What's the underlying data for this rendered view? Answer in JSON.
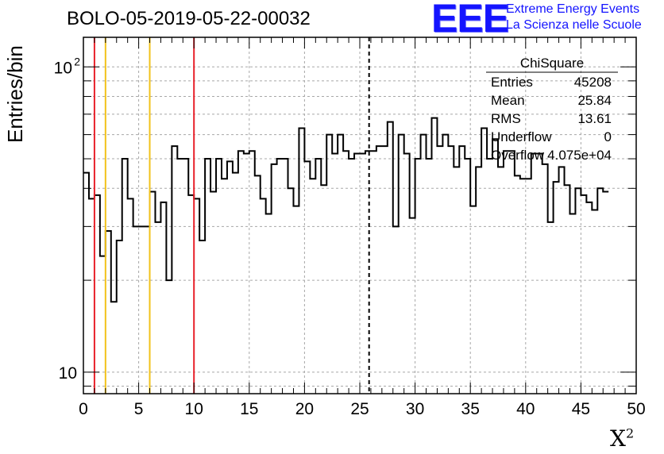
{
  "title": "BOLO-05-2019-05-22-00032",
  "logo": {
    "mark": "EEE",
    "line1": "Extreme Energy Events",
    "line2": "La Scienza nelle Scuole",
    "color": "#1414ff"
  },
  "stats_box": {
    "title": "ChiSquare",
    "rows": [
      {
        "label": "Entries",
        "value": "45208"
      },
      {
        "label": "Mean",
        "value": "25.84"
      },
      {
        "label": "RMS",
        "value": "13.61"
      },
      {
        "label": "Underflow",
        "value": "0"
      },
      {
        "label": "Overflow",
        "value": "4.075e+04"
      }
    ]
  },
  "chart_data": {
    "type": "histogram",
    "xlabel": "X",
    "xlabel_superscript": "2",
    "ylabel": "Entries/bin",
    "xlim": [
      0,
      50
    ],
    "ylim": [
      8.5,
      125
    ],
    "y_log": true,
    "grid": true,
    "x_ticks": [
      "0",
      "5",
      "10",
      "15",
      "20",
      "25",
      "30",
      "35",
      "40",
      "45",
      "50"
    ],
    "y_ticks": [
      {
        "value": 10,
        "label": "10"
      },
      {
        "value": 100,
        "label": "10",
        "exponent": "2"
      }
    ],
    "bin_width": 0.5,
    "values": [
      45,
      37,
      38,
      24,
      29,
      17,
      27,
      50,
      37,
      30,
      30,
      30,
      39,
      31,
      36,
      20,
      55,
      50,
      50,
      38,
      37,
      27,
      50,
      39,
      50,
      43,
      49,
      45,
      53,
      52,
      53,
      44,
      37,
      33,
      48,
      50,
      50,
      40,
      35,
      63,
      49,
      43,
      50,
      41,
      60,
      52,
      60,
      53,
      50,
      52,
      52,
      53,
      53,
      55,
      55,
      66,
      30,
      60,
      52,
      32,
      50,
      60,
      50,
      68,
      55,
      60,
      55,
      47,
      55,
      50,
      35,
      47,
      63,
      50,
      58,
      47,
      53,
      53,
      44,
      43,
      43,
      52,
      52,
      48,
      31,
      42,
      47,
      41,
      33,
      40,
      38,
      36,
      34,
      40,
      39
    ],
    "line_color": "#000000",
    "markers": [
      {
        "x": 1,
        "color": "#e8202a",
        "style": "solid"
      },
      {
        "x": 2,
        "color": "#f2c21b",
        "style": "solid"
      },
      {
        "x": 6,
        "color": "#f2c21b",
        "style": "solid"
      },
      {
        "x": 10,
        "color": "#e8202a",
        "style": "solid"
      },
      {
        "x": 25.84,
        "color": "#000000",
        "style": "dashed"
      }
    ]
  }
}
